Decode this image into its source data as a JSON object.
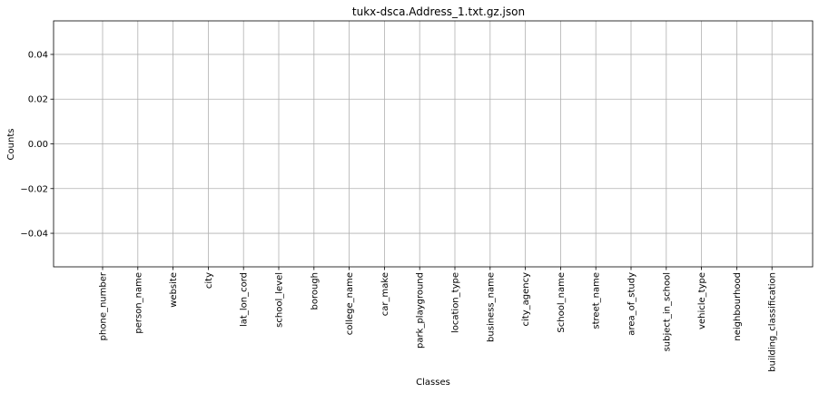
{
  "chart_data": {
    "type": "bar",
    "title": "tukx-dsca.Address_1.txt.gz.json",
    "xlabel": "Classes",
    "ylabel": "Counts",
    "categories": [
      "phone_number",
      "person_name",
      "website",
      "city",
      "lat_lon_cord",
      "school_level",
      "borough",
      "college_name",
      "car_make",
      "park_playground",
      "location_type",
      "business_name",
      "city_agency",
      "School_name",
      "street_name",
      "area_of_study",
      "subject_in_school",
      "vehicle_type",
      "neighbourhood",
      "building_classification"
    ],
    "values": [
      0,
      0,
      0,
      0,
      0,
      0,
      0,
      0,
      0,
      0,
      0,
      0,
      0,
      0,
      0,
      0,
      0,
      0,
      0,
      0
    ],
    "ylim": [
      -0.055,
      0.055
    ],
    "yticks": [
      "−0.04",
      "−0.02",
      "0.00",
      "0.02",
      "0.04"
    ],
    "ytick_values": [
      -0.04,
      -0.02,
      0.0,
      0.02,
      0.04
    ],
    "grid": true
  }
}
